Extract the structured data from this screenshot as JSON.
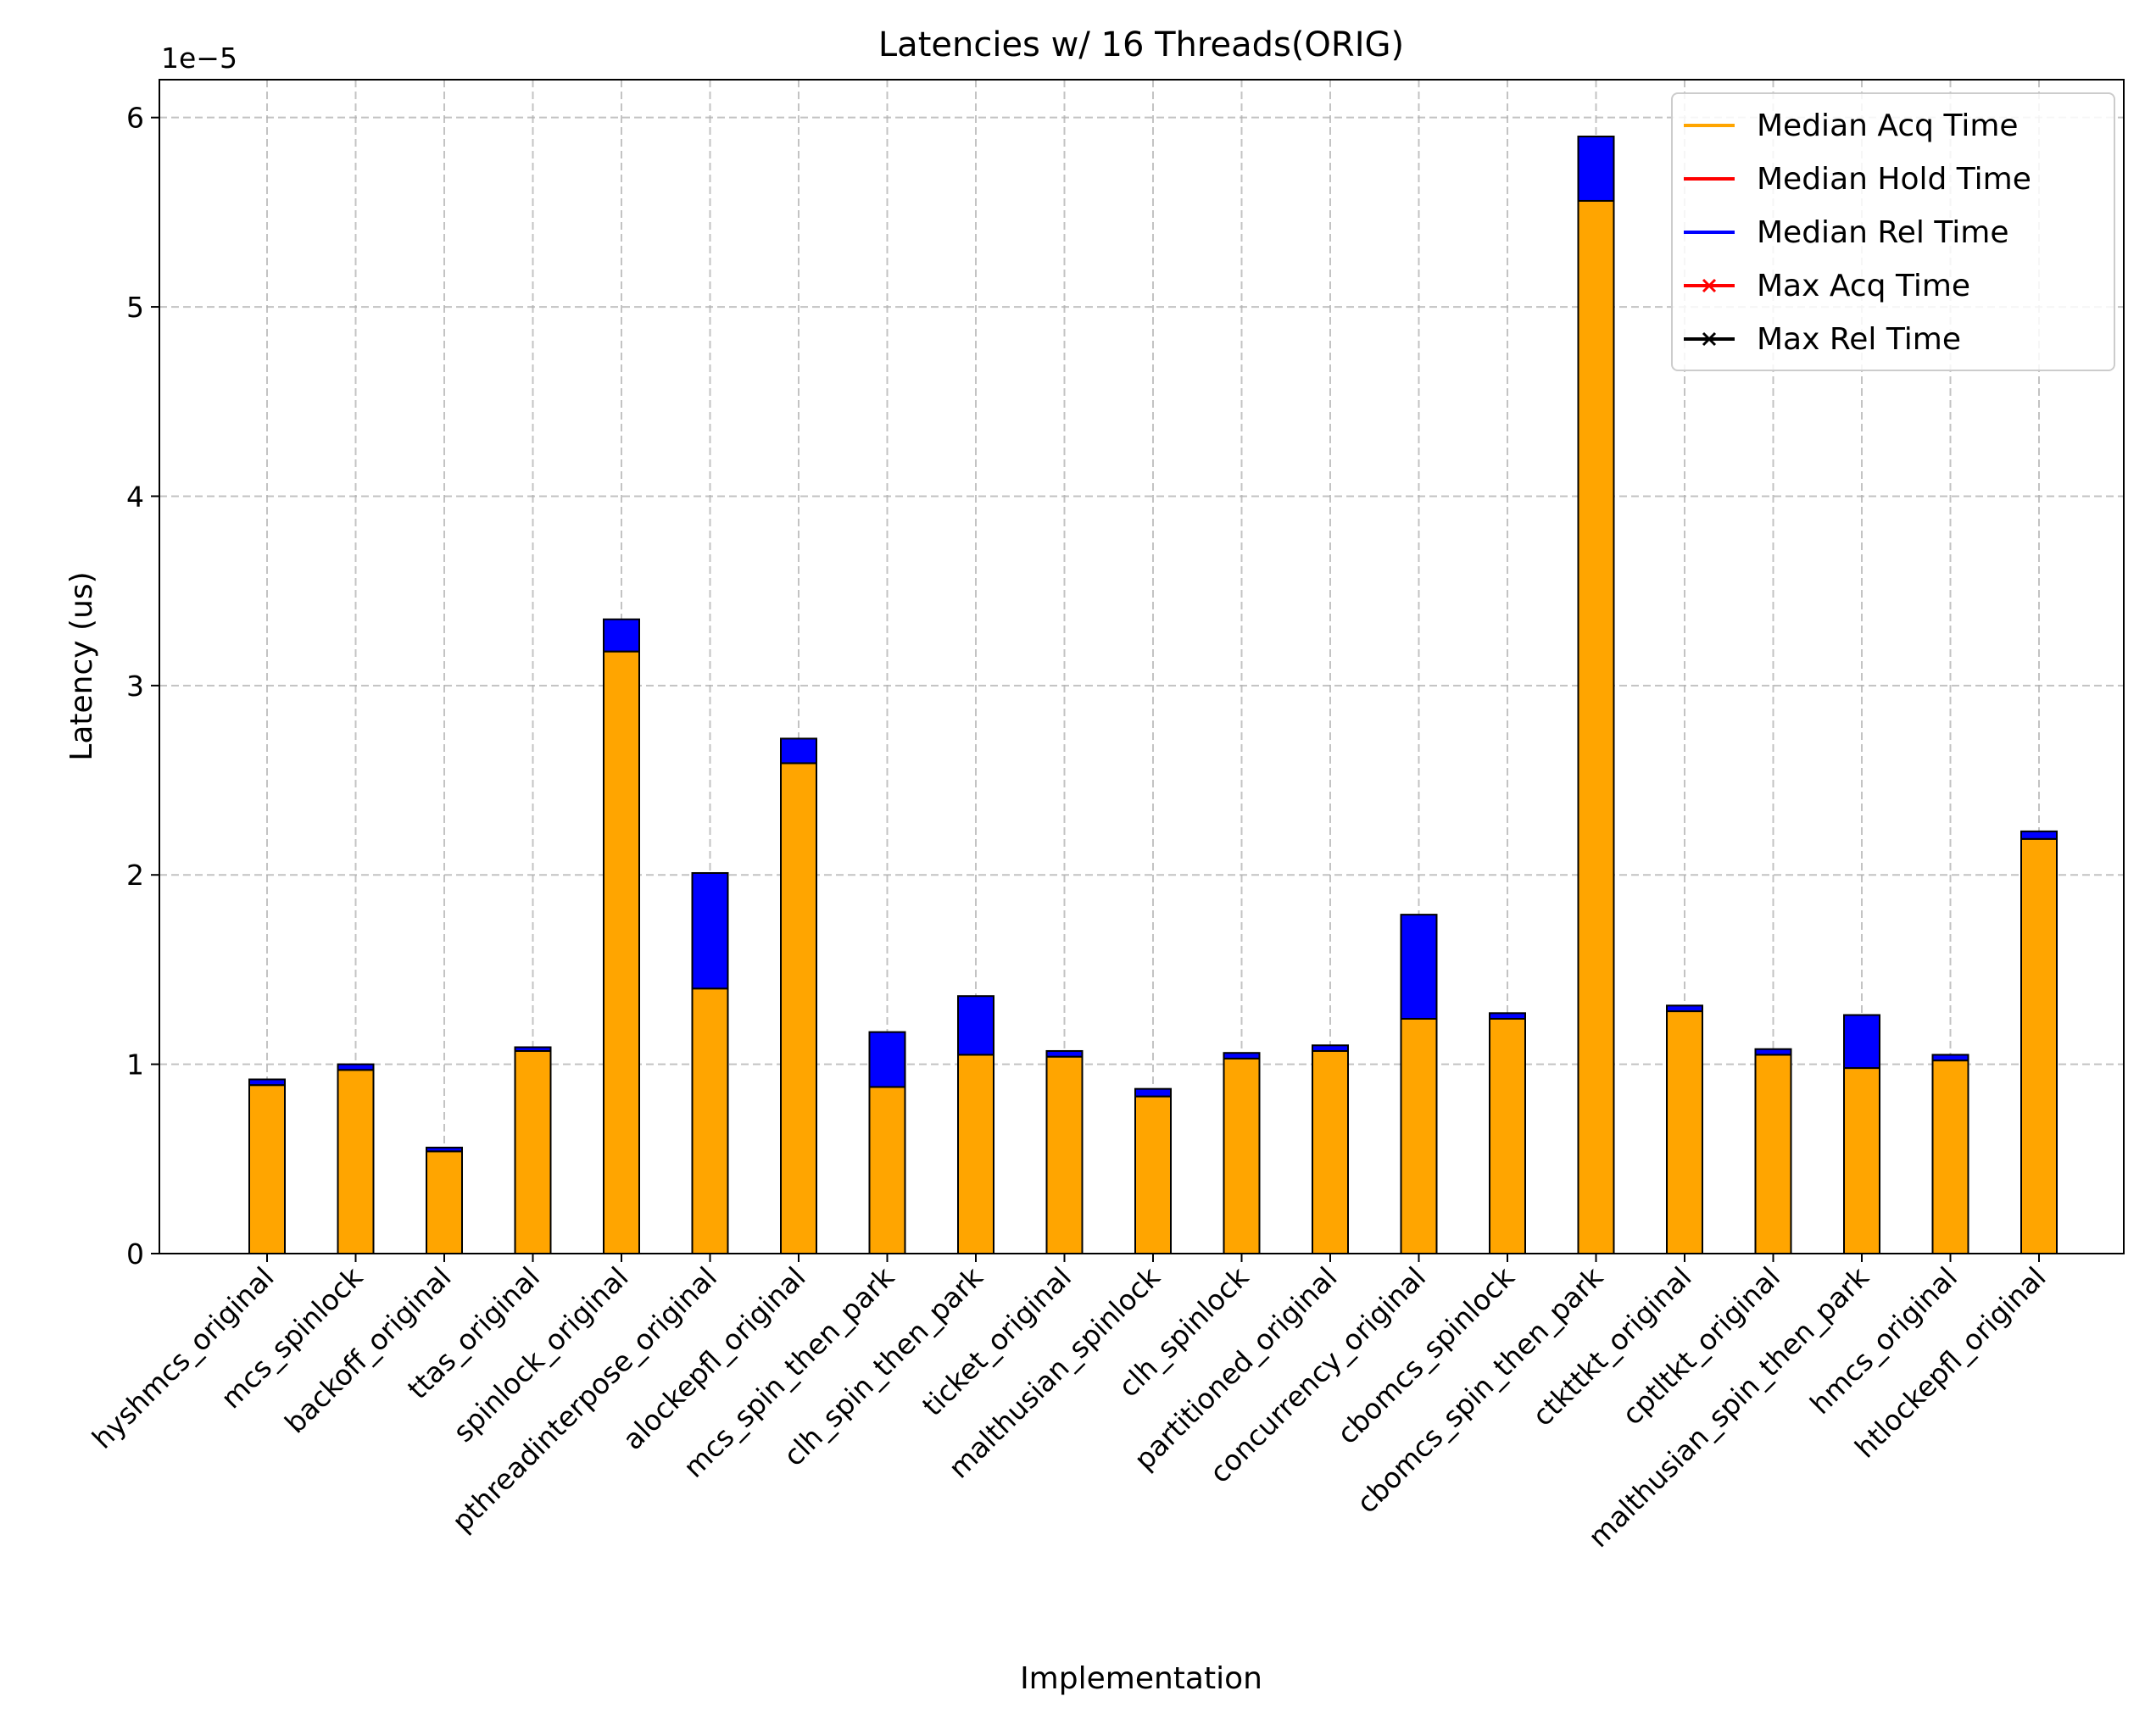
{
  "chart_data": {
    "type": "bar",
    "stacked": true,
    "title": "Latencies w/ 16 Threads(ORIG)",
    "xlabel": "Implementation",
    "ylabel": "Latency (us)",
    "y_scale_label": "1e−5",
    "y_scale_factor": 1e-05,
    "ylim": [
      0,
      6.2e-05
    ],
    "yticks": [
      0,
      1,
      2,
      3,
      4,
      5,
      6
    ],
    "grid": true,
    "legend_position": "top-right",
    "categories": [
      "hyshmcs_original",
      "mcs_spinlock",
      "backoff_original",
      "ttas_original",
      "spinlock_original",
      "pthreadinterpose_original",
      "alockepfl_original",
      "mcs_spin_then_park",
      "clh_spin_then_park",
      "ticket_original",
      "malthusian_spinlock",
      "clh_spinlock",
      "partitioned_original",
      "concurrency_original",
      "cbomcs_spinlock",
      "cbomcs_spin_then_park",
      "ctkttkt_original",
      "cptltkt_original",
      "malthusian_spin_then_park",
      "hmcs_original",
      "htlockepfl_original"
    ],
    "series": [
      {
        "name": "Median Acq Time",
        "color": "#ffa500",
        "values": [
          8.9e-06,
          9.7e-06,
          5.4e-06,
          1.07e-05,
          3.18e-05,
          1.4e-05,
          2.59e-05,
          8.8e-06,
          1.05e-05,
          1.04e-05,
          8.3e-06,
          1.03e-05,
          1.07e-05,
          1.24e-05,
          1.24e-05,
          5.56e-05,
          1.28e-05,
          1.05e-05,
          9.8e-06,
          1.02e-05,
          2.19e-05
        ]
      },
      {
        "name": "Median Hold Time",
        "color": "#ff0000",
        "values": [
          0,
          0,
          0,
          0,
          0,
          0,
          0,
          0,
          0,
          0,
          0,
          0,
          0,
          0,
          0,
          0,
          0,
          0,
          0,
          0,
          0
        ]
      },
      {
        "name": "Median Rel Time",
        "color": "#0000ff",
        "values": [
          3e-07,
          3e-07,
          2e-07,
          2e-07,
          1.7e-06,
          6.1e-06,
          1.3e-06,
          2.9e-06,
          3.1e-06,
          3e-07,
          4e-07,
          3e-07,
          3e-07,
          5.5e-06,
          3e-07,
          3.4e-06,
          3e-07,
          3e-07,
          2.8e-06,
          3e-07,
          4e-07
        ]
      }
    ],
    "legend": [
      {
        "label": "Median Acq Time",
        "color": "#ffa500",
        "marker": "none"
      },
      {
        "label": "Median Hold Time",
        "color": "#ff0000",
        "marker": "none"
      },
      {
        "label": "Median Rel Time",
        "color": "#0000ff",
        "marker": "none"
      },
      {
        "label": "Max Acq Time",
        "color": "#ff0000",
        "marker": "x"
      },
      {
        "label": "Max Rel Time",
        "color": "#000000",
        "marker": "x"
      }
    ]
  }
}
